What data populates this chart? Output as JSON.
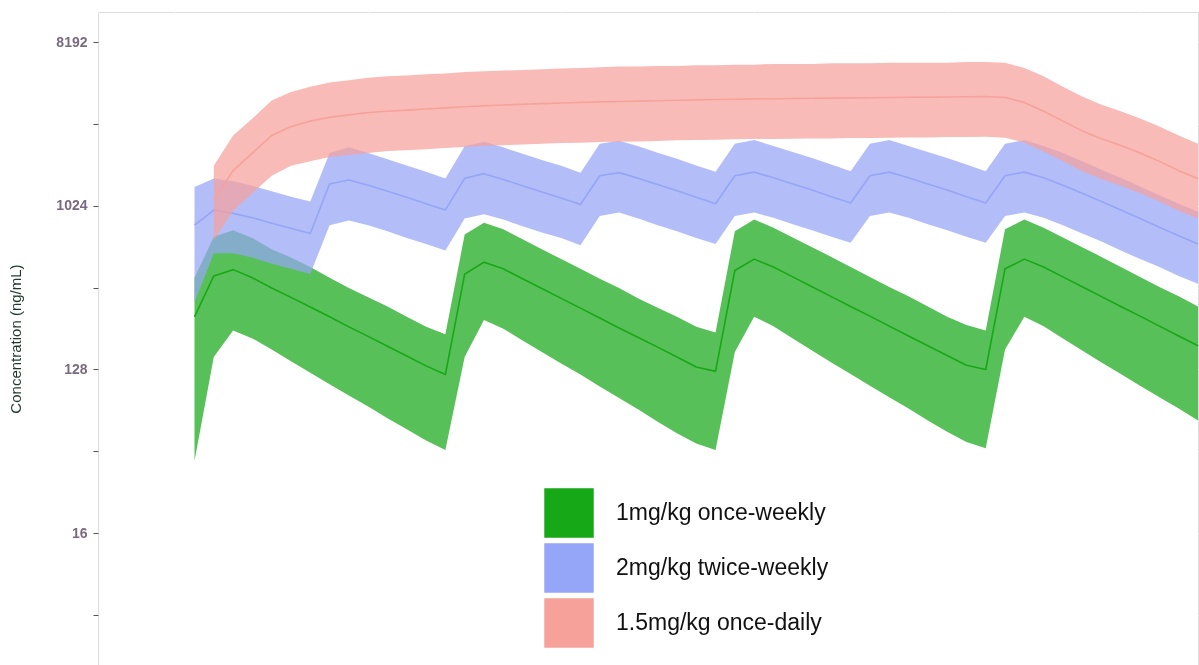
{
  "chart_data": {
    "type": "line",
    "ylabel": "Concentration (ng/mL)",
    "categories": [
      null,
      null,
      null,
      null,
      null,
      null,
      null,
      null,
      null,
      null,
      null,
      null,
      null,
      null,
      null,
      null,
      null,
      null,
      null,
      null,
      null,
      null,
      null,
      null,
      null,
      null,
      null,
      null,
      null,
      null,
      null,
      null,
      null,
      null,
      null,
      null,
      null,
      null,
      null,
      null,
      null,
      null,
      null,
      null,
      null,
      null,
      null,
      null,
      null,
      null,
      null,
      null,
      null
    ],
    "log": "y",
    "ylim": [
      3,
      12000
    ],
    "yticks": [
      {
        "value": 5.657,
        "label": null
      },
      16,
      {
        "value": 45.25,
        "label": null
      },
      128,
      {
        "value": 362,
        "label": null
      },
      1024,
      {
        "value": 2896,
        "label": null
      },
      8192
    ],
    "grid": true,
    "legend": "bottom",
    "series": [
      {
        "name": "1mg/kg once-weekly",
        "color": "#17a817",
        "values": [
          250,
          420,
          455,
          410,
          360,
          320,
          283,
          250,
          220,
          195,
          172,
          152,
          134,
          120,
          430,
          500,
          460,
          405,
          358,
          316,
          279,
          246,
          217,
          192,
          170,
          150,
          132,
          125,
          450,
          520,
          470,
          415,
          366,
          323,
          285,
          252,
          222,
          196,
          173,
          153,
          135,
          128,
          460,
          520,
          470,
          415,
          366,
          323,
          285,
          252,
          222,
          196,
          173
        ],
        "upper": [
          410,
          690,
          750,
          680,
          590,
          530,
          470,
          410,
          360,
          320,
          285,
          250,
          220,
          200,
          710,
          825,
          760,
          670,
          590,
          520,
          460,
          405,
          360,
          315,
          280,
          250,
          220,
          205,
          740,
          860,
          775,
          685,
          605,
          535,
          470,
          415,
          365,
          325,
          285,
          250,
          225,
          210,
          760,
          860,
          775,
          685,
          605,
          535,
          470,
          415,
          365,
          325,
          285
        ],
        "lower": [
          40,
          150,
          210,
          190,
          165,
          142,
          123,
          106,
          92,
          80,
          69,
          60,
          52,
          46,
          150,
          240,
          215,
          185,
          160,
          138,
          120,
          103,
          89,
          77,
          66,
          57,
          50,
          46,
          160,
          250,
          222,
          190,
          163,
          140,
          121,
          104,
          90,
          78,
          67,
          58,
          51,
          47,
          165,
          250,
          222,
          190,
          163,
          140,
          121,
          104,
          90,
          78,
          67
        ]
      },
      {
        "name": "2mg/kg twice-weekly",
        "color": "#95a5f7",
        "values": [
          800,
          970,
          930,
          880,
          820,
          770,
          720,
          1350,
          1420,
          1330,
          1230,
          1140,
          1050,
          970,
          1450,
          1540,
          1430,
          1320,
          1220,
          1130,
          1040,
          1500,
          1560,
          1450,
          1340,
          1240,
          1140,
          1050,
          1500,
          1570,
          1460,
          1350,
          1250,
          1150,
          1060,
          1500,
          1570,
          1460,
          1350,
          1250,
          1150,
          1060,
          1500,
          1570,
          1460,
          1330,
          1200,
          1080,
          970,
          870,
          780,
          700,
          630
        ],
        "upper": [
          1300,
          1450,
          1400,
          1320,
          1230,
          1150,
          1080,
          2000,
          2150,
          2000,
          1850,
          1710,
          1580,
          1450,
          2180,
          2310,
          2150,
          1980,
          1830,
          1700,
          1560,
          2250,
          2340,
          2180,
          2010,
          1860,
          1710,
          1580,
          2250,
          2360,
          2190,
          2030,
          1880,
          1730,
          1590,
          2250,
          2360,
          2190,
          2030,
          1880,
          1730,
          1590,
          2250,
          2360,
          2190,
          2000,
          1800,
          1620,
          1460,
          1310,
          1170,
          1050,
          950
        ],
        "lower": [
          300,
          560,
          560,
          530,
          490,
          460,
          430,
          800,
          850,
          800,
          740,
          680,
          630,
          580,
          870,
          920,
          860,
          790,
          730,
          680,
          620,
          900,
          940,
          870,
          800,
          740,
          680,
          630,
          900,
          940,
          880,
          810,
          750,
          690,
          640,
          900,
          940,
          880,
          810,
          750,
          690,
          640,
          900,
          940,
          880,
          800,
          720,
          650,
          580,
          520,
          470,
          420,
          380
        ]
      },
      {
        "name": "1.5mg/kg once-daily",
        "color": "#f7a19b",
        "values": [
          null,
          1100,
          1600,
          2000,
          2500,
          2800,
          3000,
          3150,
          3250,
          3350,
          3400,
          3450,
          3500,
          3550,
          3600,
          3650,
          3680,
          3720,
          3750,
          3780,
          3800,
          3830,
          3850,
          3870,
          3890,
          3910,
          3930,
          3950,
          3960,
          3980,
          3990,
          4000,
          4010,
          4020,
          4030,
          4040,
          4050,
          4060,
          4070,
          4080,
          4090,
          4100,
          4050,
          3800,
          3400,
          3000,
          2650,
          2400,
          2200,
          2000,
          1800,
          1600,
          1450
        ],
        "upper": [
          null,
          1700,
          2500,
          3100,
          3900,
          4350,
          4650,
          4900,
          5050,
          5200,
          5300,
          5350,
          5450,
          5500,
          5600,
          5650,
          5700,
          5750,
          5800,
          5850,
          5900,
          5950,
          6000,
          6000,
          6050,
          6050,
          6100,
          6100,
          6150,
          6150,
          6200,
          6200,
          6200,
          6250,
          6250,
          6250,
          6300,
          6300,
          6300,
          6300,
          6350,
          6350,
          6300,
          5900,
          5300,
          4650,
          4100,
          3700,
          3400,
          3100,
          2800,
          2500,
          2250
        ],
        "lower": [
          null,
          660,
          960,
          1200,
          1500,
          1700,
          1800,
          1900,
          1950,
          2000,
          2050,
          2070,
          2100,
          2130,
          2160,
          2190,
          2210,
          2230,
          2250,
          2270,
          2280,
          2300,
          2310,
          2320,
          2330,
          2350,
          2360,
          2370,
          2380,
          2390,
          2390,
          2400,
          2410,
          2410,
          2420,
          2420,
          2430,
          2440,
          2440,
          2450,
          2450,
          2460,
          2430,
          2280,
          2040,
          1800,
          1590,
          1440,
          1320,
          1200,
          1080,
          960,
          870
        ]
      }
    ]
  }
}
